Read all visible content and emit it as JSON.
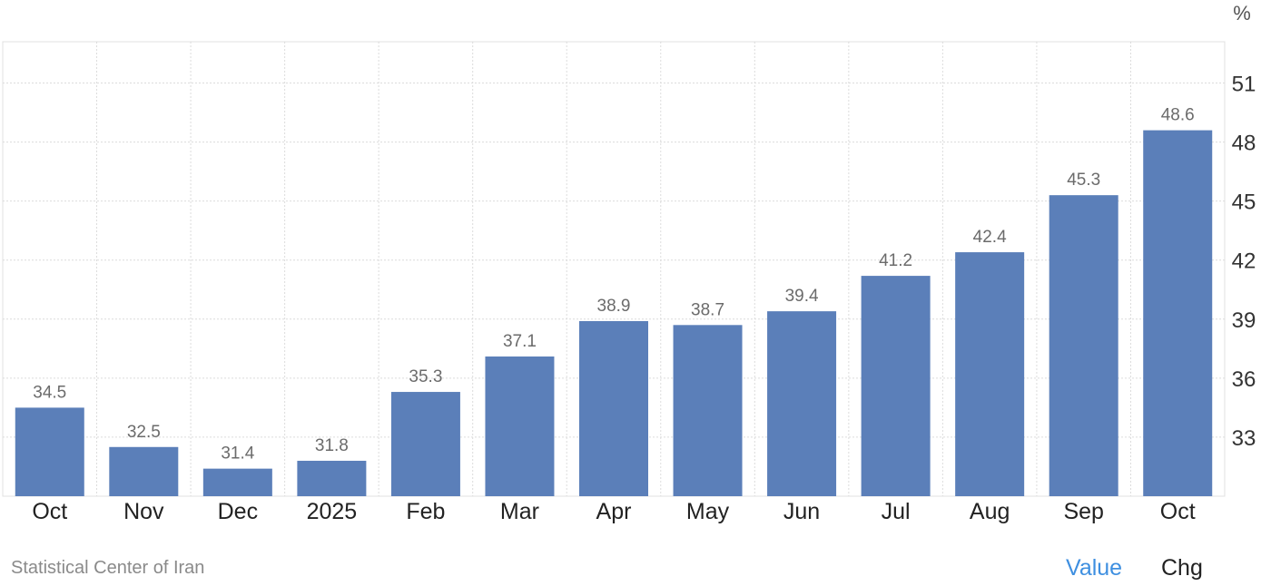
{
  "chart_data": {
    "type": "bar",
    "unit_label": "%",
    "categories": [
      "Oct",
      "Nov",
      "Dec",
      "2025",
      "Feb",
      "Mar",
      "Apr",
      "May",
      "Jun",
      "Jul",
      "Aug",
      "Sep",
      "Oct"
    ],
    "values": [
      34.5,
      32.5,
      31.4,
      31.8,
      35.3,
      37.1,
      38.9,
      38.7,
      39.4,
      41.2,
      42.4,
      45.3,
      48.6
    ],
    "y_ticks": [
      33,
      36,
      39,
      42,
      45,
      48,
      51
    ],
    "ylim": [
      30.0,
      53.1
    ],
    "y_axis_side": "right",
    "grid": true,
    "bar_color": "#5b7fb9",
    "data_labels": true
  },
  "footer": {
    "source": "Statistical Center of Iran",
    "tabs": [
      {
        "label": "Value",
        "active": true,
        "color": "#3e8fe0"
      },
      {
        "label": "Chg",
        "active": false,
        "color": "#222222"
      }
    ]
  }
}
